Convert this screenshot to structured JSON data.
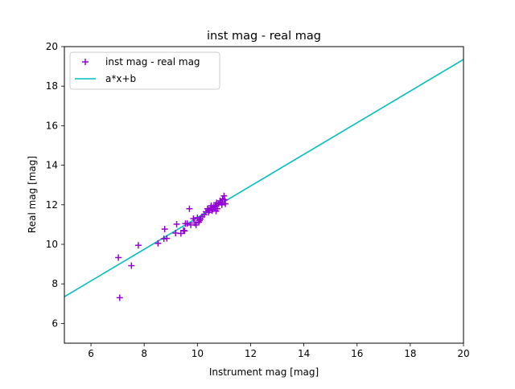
{
  "chart_data": {
    "type": "scatter",
    "title": "inst mag - real mag",
    "xlabel": "Instrument mag [mag]",
    "ylabel": "Real mag [mag]",
    "xlim": [
      5,
      20
    ],
    "ylim": [
      5,
      20
    ],
    "xticks": [
      6,
      8,
      10,
      12,
      14,
      16,
      18,
      20
    ],
    "yticks": [
      6,
      8,
      10,
      12,
      14,
      16,
      18,
      20
    ],
    "grid": false,
    "legend_position": "upper-left",
    "series": [
      {
        "name": "inst mag - real mag",
        "kind": "scatter",
        "marker": "+",
        "color": "#9400d3",
        "points": [
          [
            7.03,
            9.33
          ],
          [
            7.08,
            7.3
          ],
          [
            7.52,
            8.92
          ],
          [
            7.78,
            9.95
          ],
          [
            8.52,
            10.05
          ],
          [
            8.74,
            10.28
          ],
          [
            8.77,
            10.77
          ],
          [
            8.85,
            10.3
          ],
          [
            9.18,
            10.57
          ],
          [
            9.22,
            11.02
          ],
          [
            9.38,
            10.55
          ],
          [
            9.48,
            10.7
          ],
          [
            9.52,
            10.68
          ],
          [
            9.55,
            11.05
          ],
          [
            9.62,
            11.05
          ],
          [
            9.7,
            11.8
          ],
          [
            9.75,
            10.98
          ],
          [
            9.85,
            11.3
          ],
          [
            9.9,
            11.08
          ],
          [
            9.95,
            10.98
          ],
          [
            10.0,
            11.35
          ],
          [
            10.05,
            11.12
          ],
          [
            10.08,
            11.2
          ],
          [
            10.12,
            11.28
          ],
          [
            10.18,
            11.4
          ],
          [
            10.25,
            11.5
          ],
          [
            10.32,
            11.65
          ],
          [
            10.38,
            11.8
          ],
          [
            10.42,
            11.62
          ],
          [
            10.45,
            11.72
          ],
          [
            10.5,
            11.85
          ],
          [
            10.52,
            11.95
          ],
          [
            10.55,
            11.7
          ],
          [
            10.58,
            11.78
          ],
          [
            10.62,
            11.9
          ],
          [
            10.65,
            11.82
          ],
          [
            10.68,
            11.98
          ],
          [
            10.7,
            11.68
          ],
          [
            10.72,
            12.1
          ],
          [
            10.75,
            11.8
          ],
          [
            10.8,
            12.05
          ],
          [
            10.85,
            12.2
          ],
          [
            10.88,
            12.12
          ],
          [
            10.92,
            12.0
          ],
          [
            10.95,
            12.3
          ],
          [
            11.0,
            12.45
          ],
          [
            11.02,
            12.25
          ],
          [
            11.05,
            12.05
          ]
        ]
      },
      {
        "name": "a*x+b",
        "kind": "line",
        "color": "#00bfbf",
        "points": [
          [
            5,
            7.35
          ],
          [
            20,
            19.35
          ]
        ]
      }
    ]
  }
}
